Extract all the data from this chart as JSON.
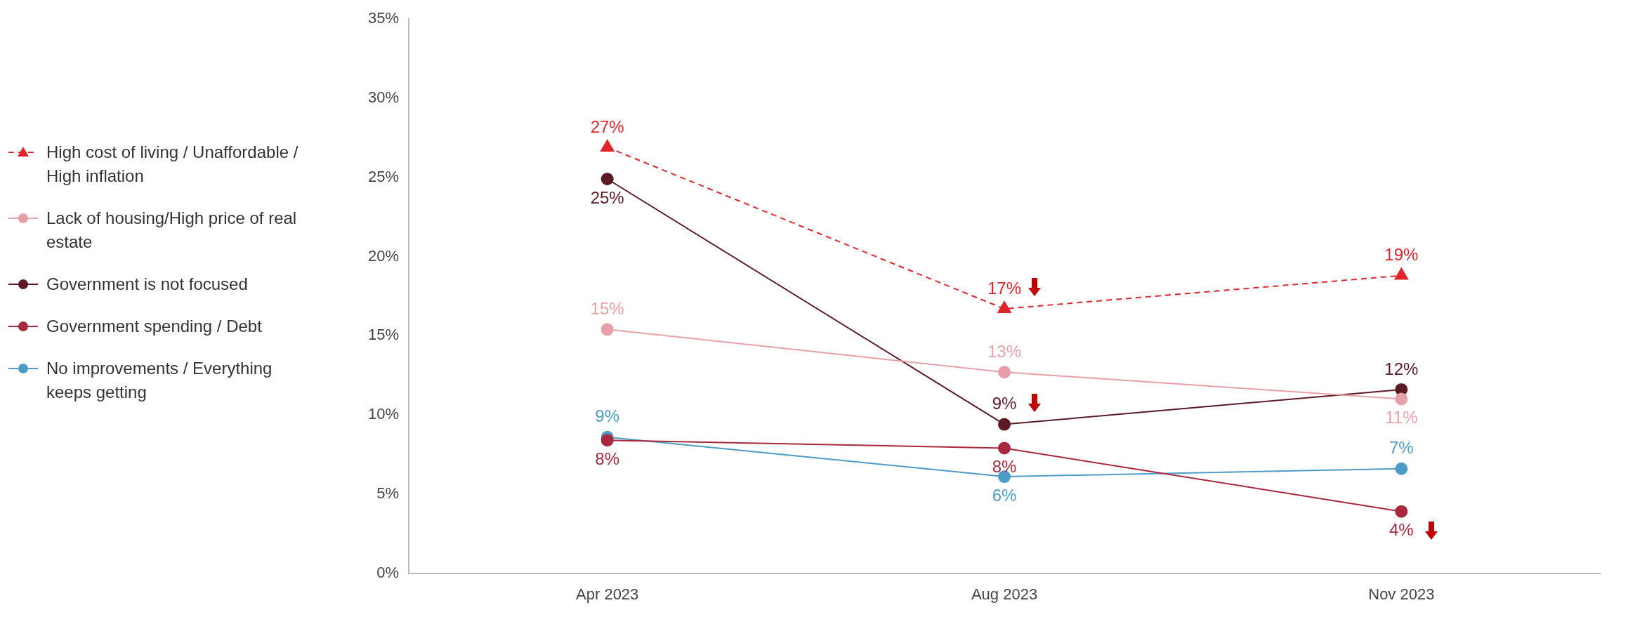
{
  "chart_data": {
    "type": "line",
    "categories": [
      "Apr 2023",
      "Aug 2023",
      "Nov 2023"
    ],
    "series": [
      {
        "name": "High cost of living / Unaffordable / High inflation",
        "color": "#e0252b",
        "values": [
          26.9,
          16.7,
          18.8
        ],
        "value_labels": [
          "27%",
          "17%",
          "19%"
        ],
        "marker": "triangle",
        "line_style": "dashed"
      },
      {
        "name": "Lack of housing/High price of real estate",
        "color": "#e8a0a8",
        "values": [
          15.4,
          12.7,
          11.0
        ],
        "value_labels": [
          "15%",
          "13%",
          "11%"
        ]
      },
      {
        "name": "Government is not focused",
        "color": "#5c1a25",
        "values": [
          24.9,
          9.4,
          11.6
        ],
        "value_labels": [
          "25%",
          "9%",
          "12%"
        ]
      },
      {
        "name": "Government spending / Debt",
        "color": "#a8283e",
        "values": [
          8.4,
          7.9,
          3.9
        ],
        "value_labels": [
          "8%",
          "8%",
          "4%"
        ]
      },
      {
        "name": "No improvements / Everything keeps getting",
        "color": "#4d9cc8",
        "values": [
          8.6,
          6.1,
          6.6
        ],
        "value_labels": [
          "9%",
          "6%",
          "7%"
        ]
      }
    ],
    "ylim": [
      0,
      35
    ],
    "yticks": [
      {
        "value": 0,
        "label": "0%"
      },
      {
        "value": 5,
        "label": "5%"
      },
      {
        "value": 10,
        "label": "10%"
      },
      {
        "value": 15,
        "label": "15%"
      },
      {
        "value": 20,
        "label": "20%"
      },
      {
        "value": 25,
        "label": "25%"
      },
      {
        "value": 30,
        "label": "30%"
      },
      {
        "value": 35,
        "label": "35%"
      }
    ],
    "grid": false,
    "legend": "left",
    "marker": "circle",
    "line_style": "solid"
  }
}
